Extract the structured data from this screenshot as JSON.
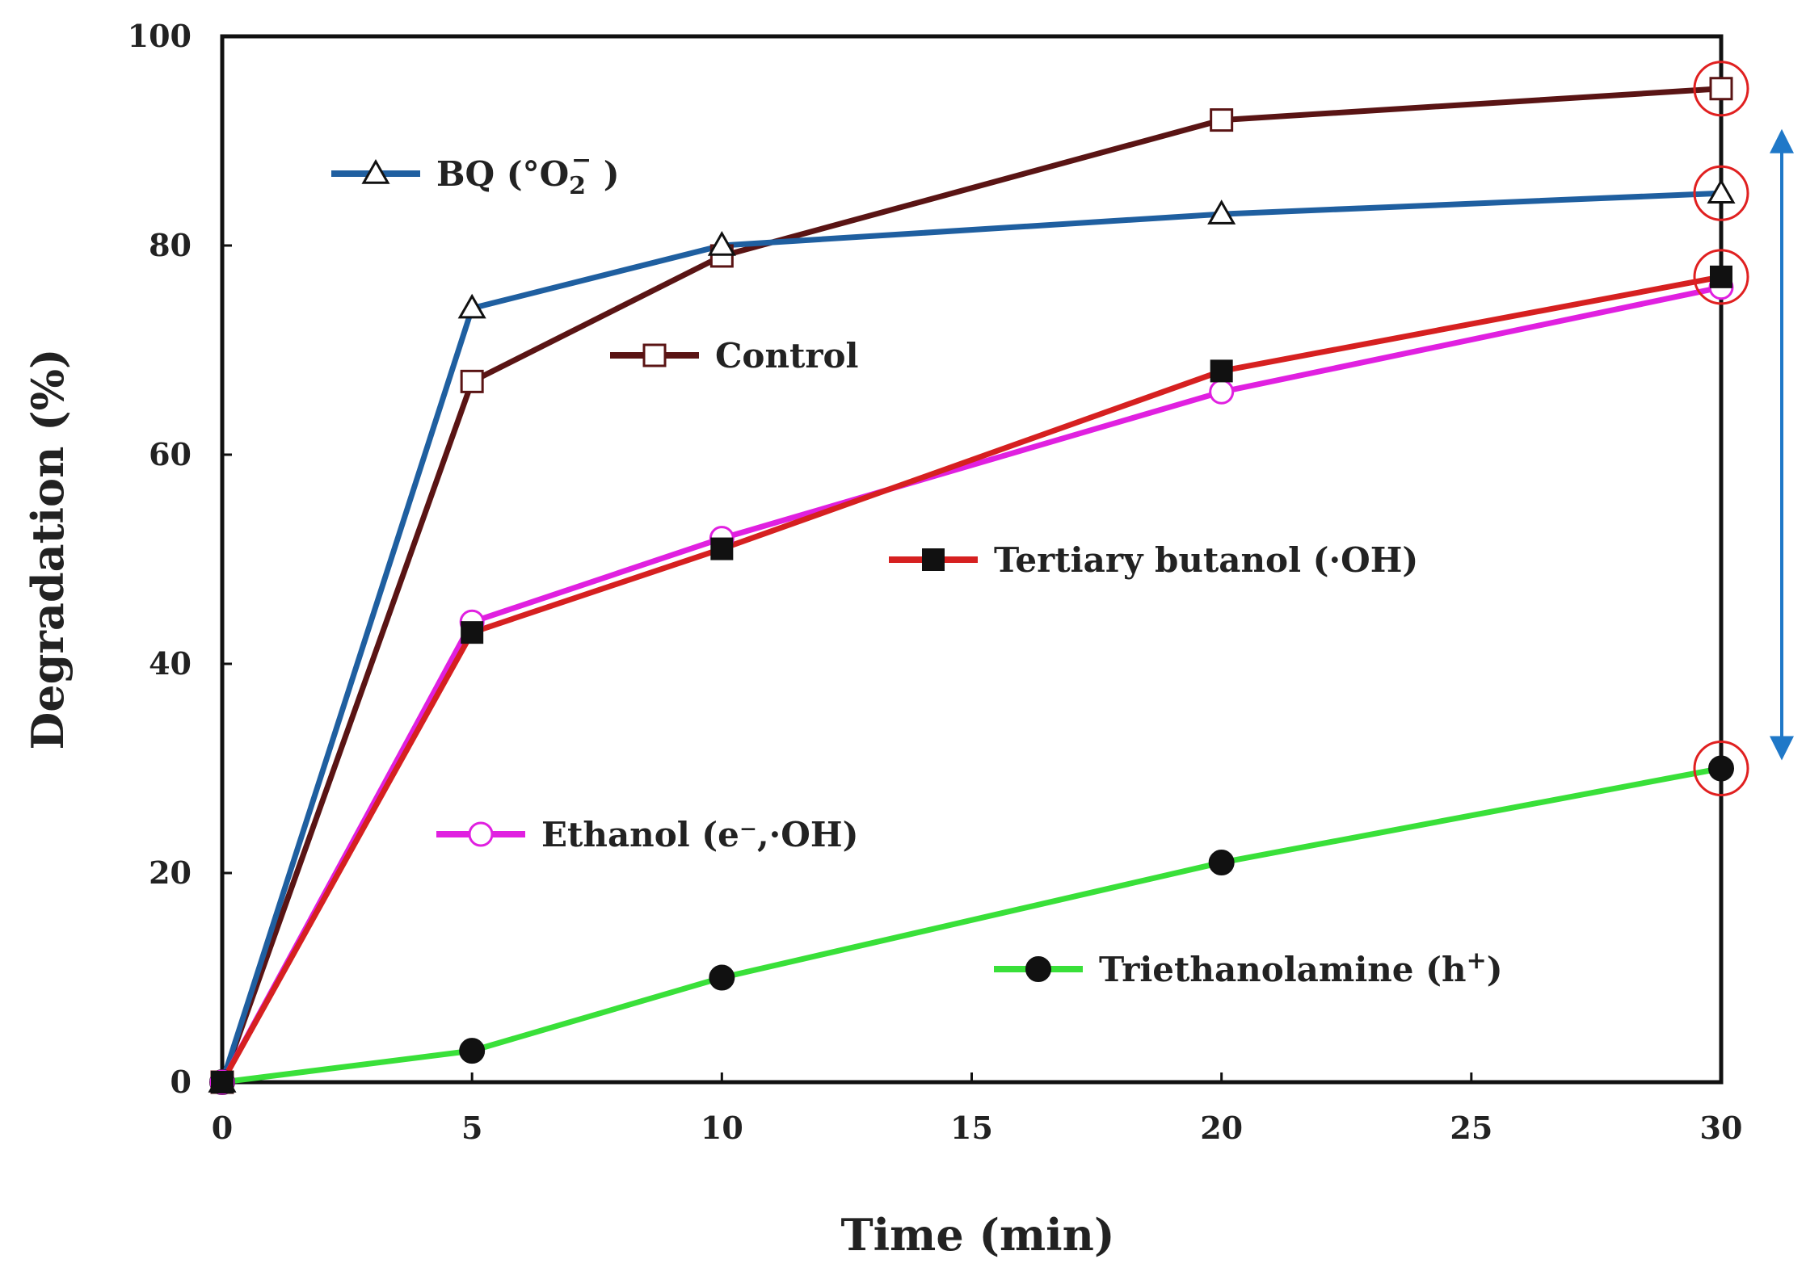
{
  "chart_data": {
    "type": "line",
    "title": "",
    "xlabel": "Time (min)",
    "ylabel": "Degradation (%)",
    "xlim": [
      0,
      30
    ],
    "ylim": [
      0,
      100
    ],
    "xticks": [
      0,
      5,
      10,
      15,
      20,
      25,
      30
    ],
    "yticks": [
      0,
      20,
      40,
      60,
      80,
      100
    ],
    "x_tick_labels": [
      "0",
      "5",
      "10",
      "15",
      "20",
      "25",
      "30"
    ],
    "y_tick_labels": [
      "0",
      "20",
      "40",
      "60",
      "80",
      "100"
    ],
    "grid": false,
    "series": [
      {
        "id": "control",
        "name": "Control",
        "color": "#5a1414",
        "marker": "open-square",
        "x": [
          0,
          5,
          10,
          20,
          30
        ],
        "values": [
          0,
          67,
          79,
          92,
          95
        ]
      },
      {
        "id": "bq",
        "name": "BQ (°O2⁻)",
        "name_main": "BQ (",
        "name_sym": "°O",
        "name_sub": "2",
        "name_sup": "−",
        "name_end": ")",
        "color": "#1f5fa0",
        "marker": "open-triangle",
        "x": [
          0,
          5,
          10,
          20,
          30
        ],
        "values": [
          0,
          74,
          80,
          83,
          85
        ]
      },
      {
        "id": "tba",
        "name": "Tertiary butanol (·OH)",
        "color": "#d62020",
        "marker": "filled-square",
        "x": [
          0,
          5,
          10,
          20,
          30
        ],
        "values": [
          0,
          43,
          51,
          68,
          77
        ]
      },
      {
        "id": "ethanol",
        "name": "Ethanol (e⁻,·OH)",
        "color": "#e020e0",
        "marker": "open-circle",
        "x": [
          0,
          5,
          10,
          20,
          30
        ],
        "values": [
          0,
          44,
          52,
          66,
          76
        ]
      },
      {
        "id": "tea",
        "name": "Triethanolamine (h⁺)",
        "name_main": "Triethanolamine (h",
        "name_sup": "+",
        "name_end": ")",
        "color": "#39e039",
        "marker": "filled-circle",
        "x": [
          0,
          5,
          10,
          20,
          30
        ],
        "values": [
          0,
          3,
          10,
          21,
          30
        ]
      }
    ],
    "highlight_x": 30,
    "highlight_circle_color": "#e02020",
    "arrow_color": "#1f78c8"
  }
}
